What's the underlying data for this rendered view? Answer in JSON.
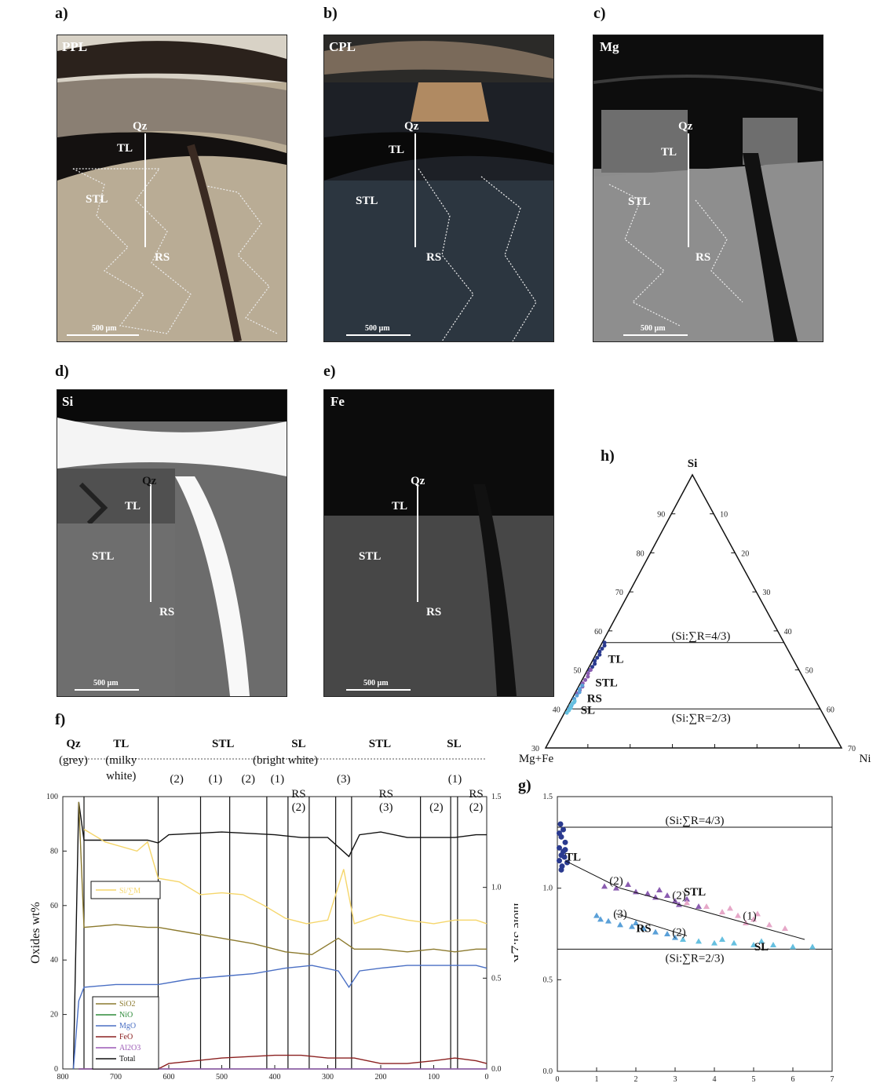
{
  "panels": {
    "a": {
      "letter": "a)",
      "corner": "PPL",
      "scale": "500 µm",
      "labels": {
        "qz": "Qz",
        "tl": "TL",
        "stl": "STL",
        "rs": "RS"
      }
    },
    "b": {
      "letter": "b)",
      "corner": "CPL",
      "scale": "500 µm",
      "labels": {
        "qz": "Qz",
        "tl": "TL",
        "stl": "STL",
        "rs": "RS"
      }
    },
    "c": {
      "letter": "c)",
      "corner": "Mg",
      "scale": "500 µm",
      "labels": {
        "qz": "Qz",
        "tl": "TL",
        "stl": "STL",
        "rs": "RS"
      }
    },
    "d": {
      "letter": "d)",
      "corner": "Si",
      "scale": "500 µm",
      "labels": {
        "qz": "Qz",
        "tl": "TL",
        "stl": "STL",
        "rs": "RS"
      }
    },
    "e": {
      "letter": "e)",
      "corner": "Fe",
      "scale": "500 µm",
      "labels": {
        "qz": "Qz",
        "tl": "TL",
        "stl": "STL",
        "rs": "RS"
      }
    },
    "f": {
      "letter": "f)"
    },
    "g": {
      "letter": "g)"
    },
    "h": {
      "letter": "h)"
    }
  },
  "colors": {
    "SiO2": "#8c7a2e",
    "NiO": "#2e8b3a",
    "MgO": "#4a6fc4",
    "FeO": "#8b2020",
    "Al2O3": "#9b59b6",
    "Total": "#111111",
    "SiR": "#f5d66b",
    "TL": "#2a3a8f",
    "STL": "#8a5cb0",
    "RS": "#5aa0d8",
    "SL": "#66c0e0",
    "pinks": "#e6a8c8"
  },
  "chart_data": [
    {
      "id": "f",
      "type": "line",
      "xlabel": "",
      "ylabel": "Oxides wt%",
      "y2label": "mole Si:∑R",
      "xlim": [
        800,
        0
      ],
      "ylim": [
        0,
        100
      ],
      "y2lim": [
        0,
        1.5
      ],
      "x_ticks": [
        "800",
        "700",
        "600",
        "500",
        "400",
        "300",
        "200",
        "100",
        "0"
      ],
      "y_ticks": [
        "0",
        "20",
        "40",
        "60",
        "80",
        "100"
      ],
      "y2_ticks": [
        "0.0",
        "0.5",
        "1.0",
        "1.5"
      ],
      "zones": [
        {
          "label": "Qz",
          "x0": 800,
          "x1": 760
        },
        {
          "label": "TL",
          "x0": 760,
          "x1": 620
        },
        {
          "label": "STL",
          "x0": 620,
          "x1": 375
        },
        {
          "label": "SL",
          "x0": 375,
          "x1": 335
        },
        {
          "label": "STL",
          "x0": 335,
          "x1": 68
        },
        {
          "label": "SL",
          "x0": 68,
          "x1": 55
        }
      ],
      "sublabels": [
        {
          "text": "(grey)"
        },
        {
          "text": "(milky"
        },
        {
          "text": "white)"
        },
        {
          "text": "(bright white)"
        },
        {
          "text": "(2)"
        },
        {
          "text": "(1)"
        },
        {
          "text": "(2)"
        },
        {
          "text": "(1)"
        },
        {
          "text": "(3)"
        },
        {
          "text": "(1)"
        },
        {
          "text": "RS"
        },
        {
          "text": "(2)"
        },
        {
          "text": "RS"
        },
        {
          "text": "(3)"
        },
        {
          "text": "(2)"
        },
        {
          "text": "RS"
        },
        {
          "text": "(2)"
        }
      ],
      "inset_legend": "Si/∑M",
      "legend": [
        "SiO2",
        "NiO",
        "MgO",
        "FeO",
        "Al2O3",
        "Total"
      ],
      "series": [
        {
          "name": "Total",
          "values": [
            [
              780,
              0
            ],
            [
              770,
              98
            ],
            [
              760,
              84
            ],
            [
              700,
              84
            ],
            [
              640,
              84
            ],
            [
              620,
              83
            ],
            [
              600,
              86
            ],
            [
              500,
              87
            ],
            [
              400,
              86
            ],
            [
              350,
              85
            ],
            [
              300,
              85
            ],
            [
              260,
              78
            ],
            [
              240,
              86
            ],
            [
              200,
              87
            ],
            [
              150,
              85
            ],
            [
              100,
              85
            ],
            [
              60,
              85
            ],
            [
              20,
              86
            ],
            [
              0,
              86
            ]
          ]
        },
        {
          "name": "Si/∑M",
          "axis": "y2",
          "values": [
            [
              760,
              1.32
            ],
            [
              720,
              1.25
            ],
            [
              660,
              1.2
            ],
            [
              640,
              1.25
            ],
            [
              620,
              1.05
            ],
            [
              580,
              1.03
            ],
            [
              540,
              0.96
            ],
            [
              500,
              0.97
            ],
            [
              460,
              0.96
            ],
            [
              420,
              0.9
            ],
            [
              380,
              0.83
            ],
            [
              340,
              0.8
            ],
            [
              300,
              0.82
            ],
            [
              270,
              1.1
            ],
            [
              250,
              0.8
            ],
            [
              200,
              0.85
            ],
            [
              150,
              0.82
            ],
            [
              100,
              0.8
            ],
            [
              60,
              0.82
            ],
            [
              20,
              0.82
            ],
            [
              0,
              0.8
            ]
          ]
        },
        {
          "name": "SiO2",
          "values": [
            [
              770,
              98
            ],
            [
              760,
              52
            ],
            [
              700,
              53
            ],
            [
              640,
              52
            ],
            [
              620,
              52
            ],
            [
              560,
              50
            ],
            [
              500,
              48
            ],
            [
              440,
              46
            ],
            [
              380,
              43
            ],
            [
              330,
              42
            ],
            [
              280,
              48
            ],
            [
              250,
              44
            ],
            [
              200,
              44
            ],
            [
              150,
              43
            ],
            [
              100,
              44
            ],
            [
              60,
              43
            ],
            [
              20,
              44
            ],
            [
              0,
              44
            ]
          ]
        },
        {
          "name": "MgO",
          "values": [
            [
              780,
              0
            ],
            [
              770,
              25
            ],
            [
              760,
              30
            ],
            [
              700,
              31
            ],
            [
              640,
              31
            ],
            [
              620,
              31
            ],
            [
              560,
              33
            ],
            [
              500,
              34
            ],
            [
              440,
              35
            ],
            [
              380,
              37
            ],
            [
              330,
              38
            ],
            [
              280,
              36
            ],
            [
              260,
              30
            ],
            [
              240,
              36
            ],
            [
              200,
              37
            ],
            [
              150,
              38
            ],
            [
              100,
              38
            ],
            [
              60,
              38
            ],
            [
              20,
              38
            ],
            [
              0,
              37
            ]
          ]
        },
        {
          "name": "FeO",
          "values": [
            [
              770,
              0
            ],
            [
              620,
              0
            ],
            [
              600,
              2
            ],
            [
              500,
              4
            ],
            [
              400,
              5
            ],
            [
              350,
              5
            ],
            [
              300,
              4
            ],
            [
              250,
              4
            ],
            [
              200,
              2
            ],
            [
              150,
              2
            ],
            [
              100,
              3
            ],
            [
              60,
              4
            ],
            [
              20,
              3
            ],
            [
              0,
              2
            ]
          ]
        },
        {
          "name": "NiO",
          "values": [
            [
              770,
              0
            ],
            [
              0,
              0
            ]
          ]
        },
        {
          "name": "Al2O3",
          "values": [
            [
              770,
              0
            ],
            [
              0,
              0
            ]
          ]
        }
      ]
    },
    {
      "id": "g",
      "type": "scatter",
      "xlim": [
        0,
        7
      ],
      "ylim": [
        0.0,
        1.5
      ],
      "x_ticks": [
        "0",
        "1",
        "2",
        "3",
        "4",
        "5",
        "6",
        "7"
      ],
      "y_ticks": [
        "0.0",
        "0.5",
        "1.0",
        "1.5"
      ],
      "hlines": [
        {
          "y": 1.333,
          "label": "(Si:∑R=4/3)"
        },
        {
          "y": 0.667,
          "label": "(Si:∑R=2/3)"
        }
      ],
      "annotations": [
        "TL",
        "STL",
        "RS",
        "SL",
        "(2)",
        "(2)",
        "(1)",
        "(3)",
        "(2)"
      ],
      "series": [
        {
          "name": "TL",
          "points": [
            [
              0.05,
              1.3
            ],
            [
              0.1,
              1.28
            ],
            [
              0.05,
              1.22
            ],
            [
              0.15,
              1.2
            ],
            [
              0.1,
              1.18
            ],
            [
              0.2,
              1.25
            ],
            [
              0.05,
              1.15
            ],
            [
              0.12,
              1.12
            ],
            [
              0.18,
              1.17
            ],
            [
              0.08,
              1.35
            ],
            [
              0.15,
              1.32
            ],
            [
              0.1,
              1.1
            ],
            [
              0.25,
              1.14
            ],
            [
              0.2,
              1.21
            ]
          ]
        },
        {
          "name": "STL",
          "points": [
            [
              1.5,
              1.0
            ],
            [
              1.8,
              1.02
            ],
            [
              2.0,
              0.98
            ],
            [
              2.3,
              0.97
            ],
            [
              2.5,
              0.95
            ],
            [
              2.8,
              0.96
            ],
            [
              3.0,
              0.93
            ],
            [
              3.3,
              0.94
            ],
            [
              3.6,
              0.9
            ],
            [
              1.2,
              1.01
            ],
            [
              2.6,
              0.99
            ],
            [
              3.1,
              0.91
            ]
          ]
        },
        {
          "name": "RS",
          "points": [
            [
              1.0,
              0.85
            ],
            [
              1.3,
              0.82
            ],
            [
              1.6,
              0.8
            ],
            [
              1.9,
              0.79
            ],
            [
              2.2,
              0.78
            ],
            [
              2.5,
              0.76
            ],
            [
              2.8,
              0.75
            ],
            [
              3.0,
              0.73
            ],
            [
              1.1,
              0.83
            ],
            [
              2.0,
              0.81
            ]
          ]
        },
        {
          "name": "SL",
          "points": [
            [
              3.2,
              0.72
            ],
            [
              3.6,
              0.71
            ],
            [
              4.0,
              0.7
            ],
            [
              4.5,
              0.7
            ],
            [
              5.0,
              0.69
            ],
            [
              5.5,
              0.69
            ],
            [
              6.0,
              0.68
            ],
            [
              6.5,
              0.68
            ],
            [
              4.2,
              0.72
            ],
            [
              5.2,
              0.71
            ]
          ]
        },
        {
          "name": "pinks",
          "points": [
            [
              3.3,
              0.92
            ],
            [
              3.8,
              0.9
            ],
            [
              4.2,
              0.87
            ],
            [
              4.6,
              0.85
            ],
            [
              5.0,
              0.83
            ],
            [
              5.4,
              0.8
            ],
            [
              5.8,
              0.78
            ],
            [
              4.4,
              0.89
            ],
            [
              5.1,
              0.86
            ],
            [
              4.8,
              0.81
            ]
          ]
        }
      ],
      "trend_lines": [
        [
          [
            0.2,
            1.15
          ],
          [
            1.6,
            1.0
          ]
        ],
        [
          [
            1.6,
            1.0
          ],
          [
            6.3,
            0.72
          ]
        ],
        [
          [
            1.5,
            0.86
          ],
          [
            3.3,
            0.74
          ]
        ]
      ]
    },
    {
      "id": "h",
      "type": "ternary",
      "vertices": {
        "top": "Si",
        "left": "Mg+Fe",
        "right": "Ni"
      },
      "left_ticks": [
        "90",
        "80",
        "70",
        "60",
        "50",
        "40",
        "30"
      ],
      "right_ticks": [
        "10",
        "20",
        "30",
        "40",
        "50",
        "60",
        "70"
      ],
      "lines": [
        {
          "label": "(Si:∑R=4/3)",
          "si": 57
        },
        {
          "label": "(Si:∑R=2/3)",
          "si": 40
        }
      ],
      "labels": [
        "TL",
        "STL",
        "RS",
        "SL"
      ]
    }
  ]
}
